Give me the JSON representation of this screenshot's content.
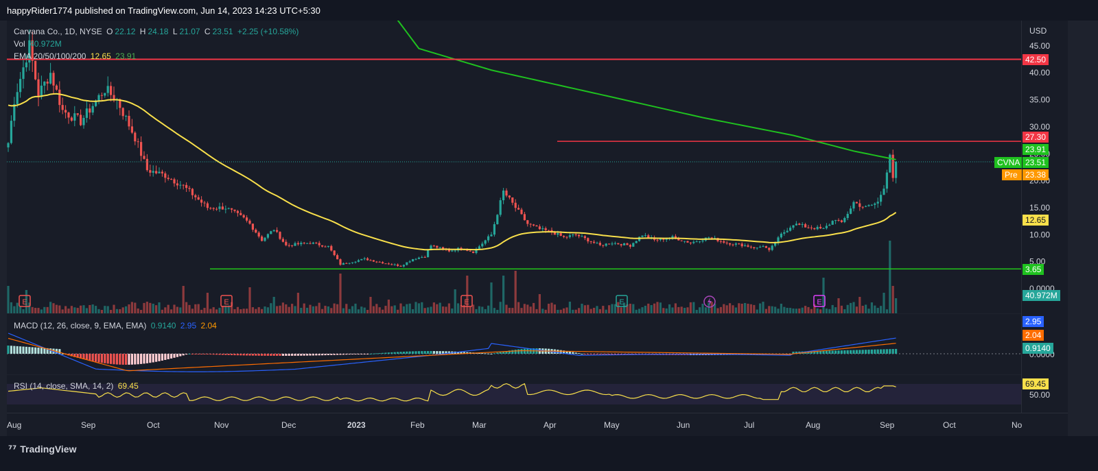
{
  "header": {
    "publisher": "happyRider1774 published on TradingView.com, Jun 14, 2023 14:23 UTC+5:30"
  },
  "legend": {
    "symbol": "Carvana Co., 1D, NYSE",
    "open_label": "O",
    "open": "22.12",
    "high_label": "H",
    "high": "24.18",
    "low_label": "L",
    "low": "21.07",
    "close_label": "C",
    "close": "23.51",
    "change": "+2.25 (+10.58%)",
    "vol_label": "Vol",
    "vol": "40.972M",
    "ema_label": "EMA 20/50/100/200",
    "ema_a": "12.65",
    "ema_b": "23.91",
    "macd_label": "MACD (12, 26, close, 9, EMA, EMA)",
    "macd_hist": "0.9140",
    "macd_line": "2.95",
    "macd_signal": "2.04",
    "rsi_label": "RSI (14, close, SMA, 14, 2)",
    "rsi_value": "69.45"
  },
  "axis": {
    "currency": "USD",
    "price_ticks": [
      "45.00",
      "40.00",
      "35.00",
      "30.00",
      "25.00",
      "20.00",
      "15.00",
      "10.00",
      "5.00",
      "0.0000"
    ],
    "macd_ticks": [
      "0.0000"
    ],
    "rsi_ticks": [
      "50.00"
    ],
    "time_ticks": [
      "Aug",
      "Sep",
      "Oct",
      "Nov",
      "Dec",
      "2023",
      "Feb",
      "Mar",
      "Apr",
      "May",
      "Jun",
      "Jul",
      "Aug",
      "Sep",
      "Oct",
      "No"
    ]
  },
  "price_tags": {
    "level_high": "42.50",
    "level_mid": "27.30",
    "ema_b": "23.91",
    "symbol": "CVNA",
    "last": "23.51",
    "pre_label": "Pre",
    "pre": "23.38",
    "ema_a": "12.65",
    "level_low": "3.65",
    "volume": "40.972M",
    "macd_line": "2.95",
    "macd_signal": "2.04",
    "macd_hist": "0.9140",
    "rsi": "69.45"
  },
  "colors": {
    "up": "#26a69a",
    "down": "#ef5350",
    "ema_fast": "#f9e04b",
    "ema_slow": "#1fc11f",
    "resistance": "#f23645",
    "support": "#22c41a",
    "macd": "#2962ff",
    "signal": "#ff6d00",
    "rsi": "#f9e04b"
  },
  "events": {
    "earnings_label": "E",
    "dividend_icon": "lightning-icon"
  },
  "footer": {
    "brand": "TradingView",
    "brand_icon": "tradingview-logo-icon"
  },
  "chart_data": {
    "type": "candlestick",
    "title": "Carvana Co., 1D, NYSE",
    "ylim": [
      0,
      47
    ],
    "horizontal_levels": [
      42.5,
      27.3,
      3.65
    ],
    "key_points": [
      {
        "date": "Aug",
        "close": 27
      },
      {
        "date": "Aug",
        "close": 45
      },
      {
        "date": "Sep",
        "close": 32
      },
      {
        "date": "Oct",
        "close": 21
      },
      {
        "date": "Nov",
        "close": 12
      },
      {
        "date": "Dec",
        "close": 4.5
      },
      {
        "date": "2023",
        "close": 6.5
      },
      {
        "date": "Feb",
        "close": 18
      },
      {
        "date": "Mar",
        "close": 8
      },
      {
        "date": "Apr",
        "close": 9
      },
      {
        "date": "May",
        "close": 8
      },
      {
        "date": "Jun",
        "close": 16
      },
      {
        "date": "Jun",
        "close": 23.51
      }
    ],
    "ema_fast_last": 12.65,
    "ema_slow_last": 23.91
  }
}
